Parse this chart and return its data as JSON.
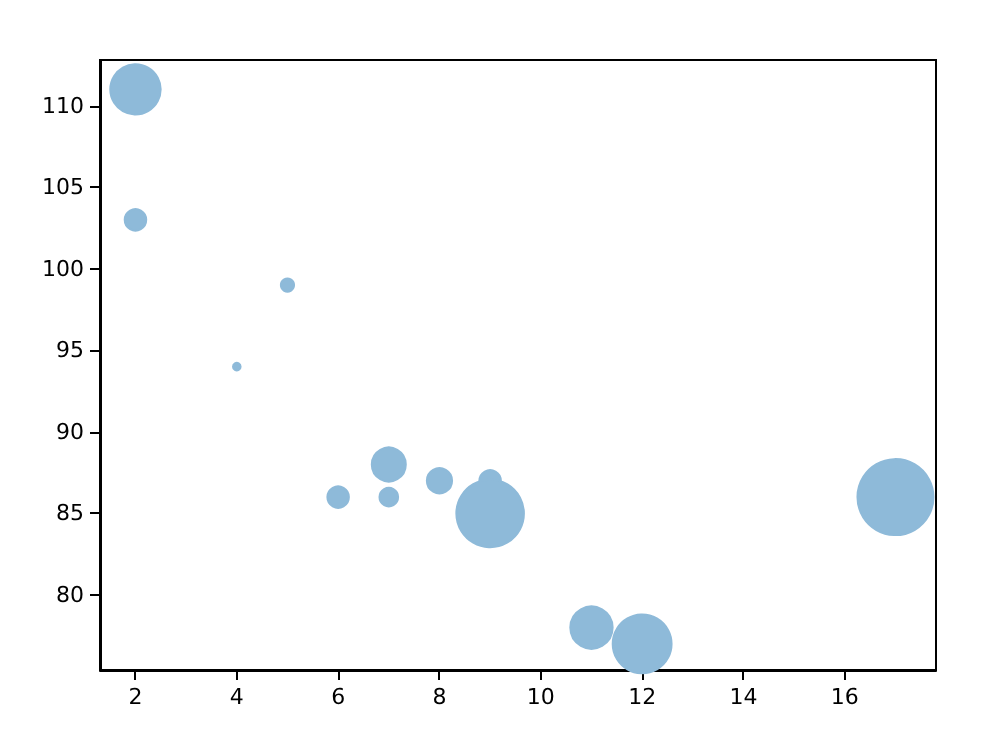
{
  "chart_data": {
    "type": "bubble",
    "x": [
      5,
      7,
      8,
      7,
      2,
      17,
      2,
      9,
      4,
      11,
      12,
      9,
      6
    ],
    "values": [
      99,
      86,
      87,
      88,
      111,
      86,
      103,
      87,
      94,
      78,
      77,
      85,
      86
    ],
    "sizes": [
      0.03,
      0.06,
      0.11,
      0.2,
      0.44,
      1,
      0.08,
      0.08,
      0.01,
      0.31,
      0.6,
      0.79,
      0.08
    ],
    "color": "#8ebad9",
    "xlim": [
      1.3,
      17.8
    ],
    "xticks": [
      2,
      4,
      6,
      8,
      10,
      12,
      14,
      16
    ],
    "ylim": [
      75.4,
      112.8
    ],
    "yticks": [
      80,
      85,
      90,
      95,
      100,
      105,
      110
    ],
    "grid": false
  }
}
